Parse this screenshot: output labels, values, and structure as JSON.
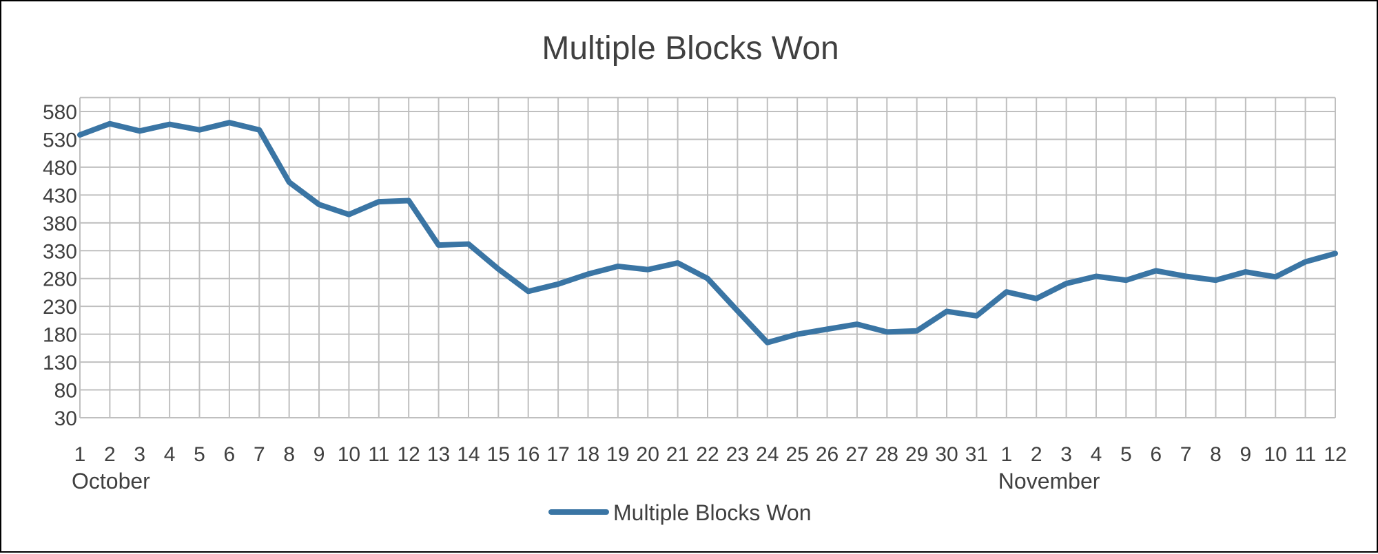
{
  "chart_data": {
    "type": "line",
    "title": "Multiple Blocks Won",
    "xlabel": "",
    "ylabel": "",
    "ylim": [
      30,
      580
    ],
    "y_ticks": [
      30,
      80,
      130,
      180,
      230,
      280,
      330,
      380,
      430,
      480,
      530,
      580
    ],
    "grid": true,
    "legend": "bottom",
    "categories": [
      "1",
      "2",
      "3",
      "4",
      "5",
      "6",
      "7",
      "8",
      "9",
      "10",
      "11",
      "12",
      "13",
      "14",
      "15",
      "16",
      "17",
      "18",
      "19",
      "20",
      "21",
      "22",
      "23",
      "24",
      "25",
      "26",
      "27",
      "28",
      "29",
      "30",
      "31",
      "1",
      "2",
      "3",
      "4",
      "5",
      "6",
      "7",
      "8",
      "9",
      "10",
      "11",
      "12"
    ],
    "category_groups": [
      {
        "label": "October",
        "start": 0,
        "end": 30
      },
      {
        "label": "November",
        "start": 31,
        "end": 42
      }
    ],
    "series": [
      {
        "name": "Multiple Blocks Won",
        "color": "#3A75A4",
        "values": [
          538,
          558,
          545,
          557,
          547,
          560,
          547,
          453,
          413,
          395,
          418,
          420,
          340,
          342,
          297,
          257,
          270,
          288,
          302,
          296,
          308,
          280,
          222,
          165,
          180,
          189,
          198,
          184,
          186,
          221,
          213,
          256,
          244,
          271,
          284,
          277,
          294,
          284,
          277,
          292,
          283,
          310,
          325
        ]
      }
    ]
  }
}
